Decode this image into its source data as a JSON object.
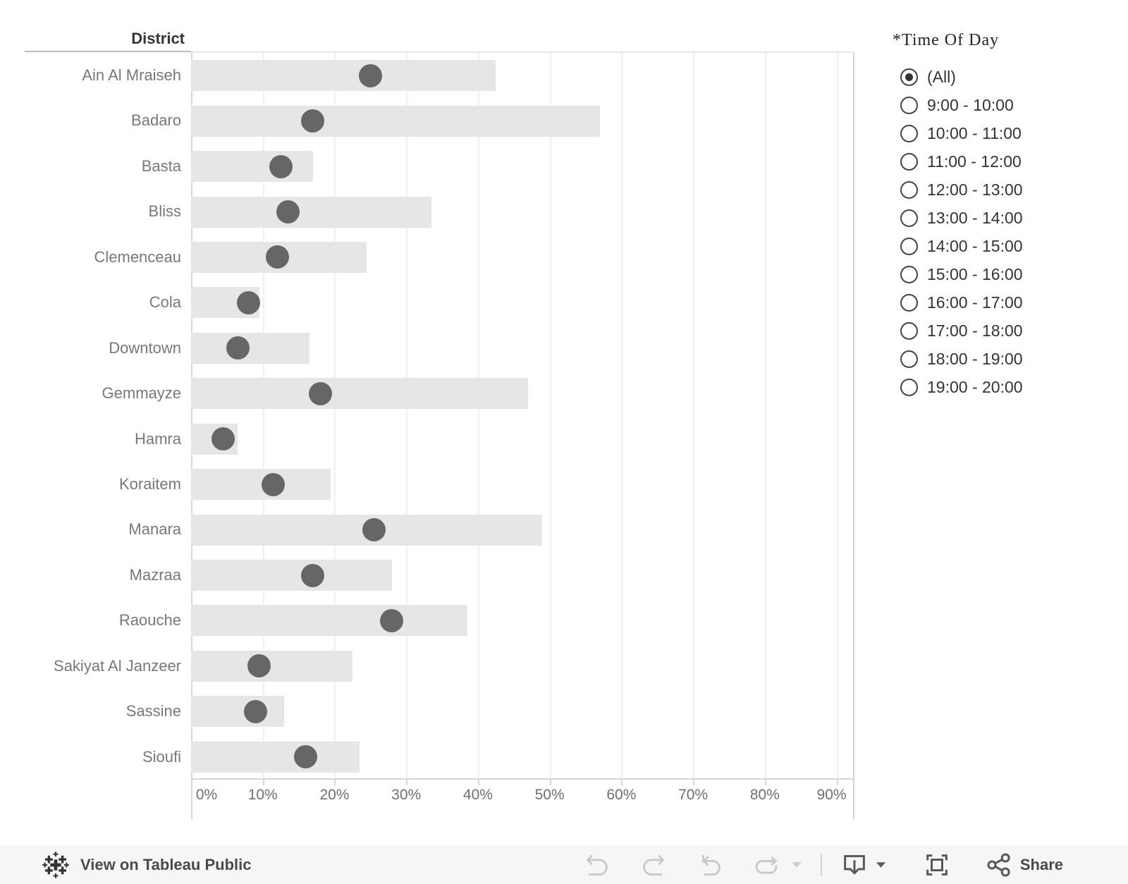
{
  "chart": {
    "column_header": "District"
  },
  "chart_data": {
    "type": "bar",
    "title": "District",
    "orientation": "horizontal",
    "categories": [
      "Ain Al Mraiseh",
      "Badaro",
      "Basta",
      "Bliss",
      "Clemenceau",
      "Cola",
      "Downtown",
      "Gemmayze",
      "Hamra",
      "Koraitem",
      "Manara",
      "Mazraa",
      "Raouche",
      "Sakiyat Al Janzeer",
      "Sassine",
      "Sioufi"
    ],
    "series": [
      {
        "name": "bar_length_pct",
        "mark": "bar",
        "values": [
          42.5,
          57,
          17,
          33.5,
          24.5,
          9.5,
          16.5,
          47,
          6.5,
          19.5,
          49,
          28,
          38.5,
          22.5,
          13,
          23.5
        ]
      },
      {
        "name": "dot_position_pct",
        "mark": "circle",
        "values": [
          25,
          17,
          12.5,
          13.5,
          12,
          8,
          6.5,
          18,
          4.5,
          11.5,
          25.5,
          17,
          28,
          9.5,
          9,
          16
        ]
      }
    ],
    "x_tick_labels": [
      "0%",
      "10%",
      "20%",
      "30%",
      "40%",
      "50%",
      "60%",
      "70%",
      "80%",
      "90%"
    ],
    "x_tick_values": [
      0,
      10,
      20,
      30,
      40,
      50,
      60,
      70,
      80,
      90
    ],
    "xlim": [
      0,
      92.5
    ],
    "unit": "%",
    "grid": "vertical",
    "legend": "none",
    "bar_color": "#e6e6e6",
    "dot_color": "#666666"
  },
  "filter": {
    "title": "*Time Of Day",
    "selected_index": 0,
    "options": [
      "(All)",
      "9:00 - 10:00",
      "10:00 - 11:00",
      "11:00 - 12:00",
      "12:00 - 13:00",
      "13:00 - 14:00",
      "14:00 - 15:00",
      "15:00 - 16:00",
      "16:00 - 17:00",
      "17:00 - 18:00",
      "18:00 - 19:00",
      "19:00 - 20:00"
    ]
  },
  "footer": {
    "view_label": "View on Tableau Public",
    "share_label": "Share",
    "icons": [
      "tableau-logo",
      "undo",
      "redo",
      "revert",
      "refresh",
      "dropdown-caret",
      "separator",
      "download",
      "download-caret",
      "fullscreen",
      "share"
    ]
  },
  "colors": {
    "background": "#ffffff",
    "footer_background": "#f6f6f6",
    "bar": "#e6e6e6",
    "dot": "#666666",
    "gridline": "#f0f0f0",
    "pane_border": "#d6d6d6",
    "axis_text": "#707070",
    "label_text": "#787878",
    "header_text": "#343434",
    "disabled_icon": "#c9c9c9",
    "active_icon": "#595959"
  }
}
